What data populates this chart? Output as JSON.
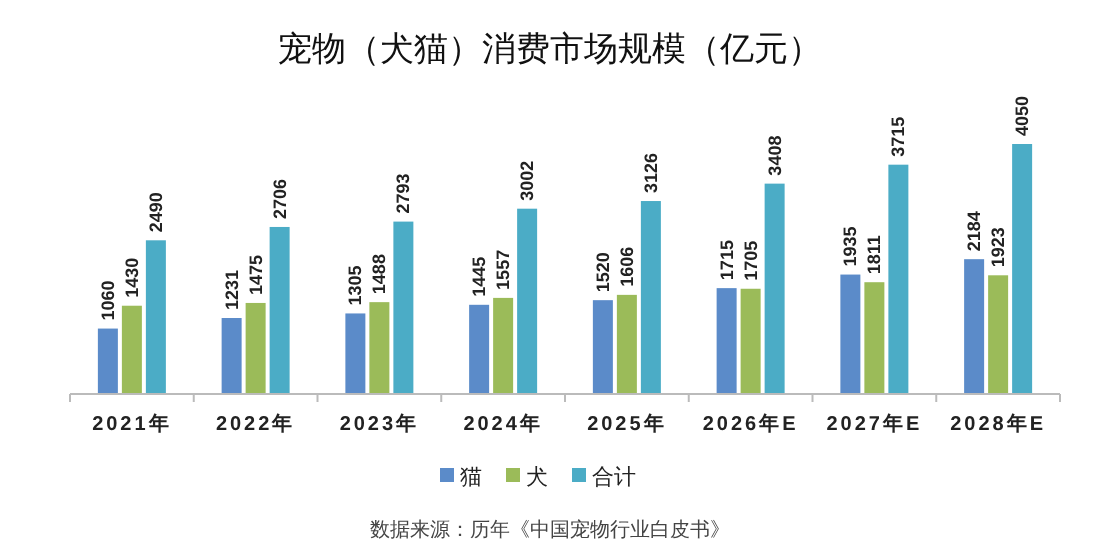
{
  "chart_data": {
    "type": "bar",
    "title": "宠物（犬猫）消费市场规模（亿元）",
    "categories": [
      "2021年",
      "2022年",
      "2023年",
      "2024年",
      "2025年",
      "2026年E",
      "2027年E",
      "2028年E"
    ],
    "series": [
      {
        "name": "猫",
        "color": "#5b8bc9",
        "values": [
          1060,
          1231,
          1305,
          1445,
          1520,
          1715,
          1935,
          2184
        ]
      },
      {
        "name": "犬",
        "color": "#9bbb59",
        "values": [
          1430,
          1475,
          1488,
          1557,
          1606,
          1705,
          1811,
          1923
        ]
      },
      {
        "name": "合计",
        "color": "#4bacc6",
        "values": [
          2490,
          2706,
          2793,
          3002,
          3126,
          3408,
          3715,
          4050
        ]
      }
    ],
    "data_labels": true,
    "legend": "bottom",
    "grid": false,
    "annotations": [
      "数据来源：历年《中国宠物行业白皮书》"
    ]
  }
}
